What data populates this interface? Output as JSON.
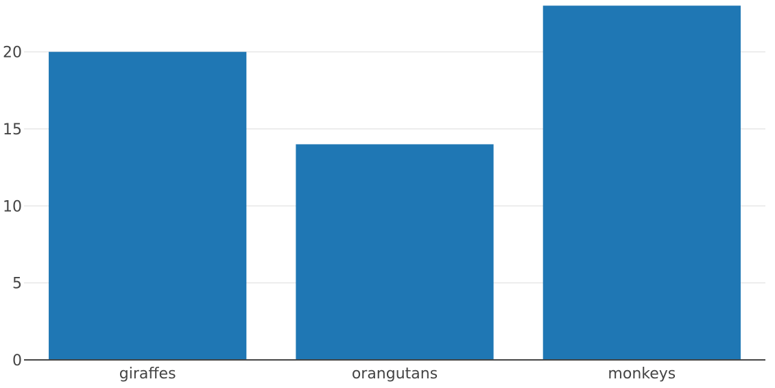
{
  "chart_data": {
    "type": "bar",
    "title": "",
    "xlabel": "",
    "ylabel": "",
    "categories": [
      "giraffes",
      "orangutans",
      "monkeys"
    ],
    "values": [
      20,
      14,
      23
    ],
    "ylim": [
      0,
      23.1
    ],
    "yticks": [
      0,
      5,
      10,
      15,
      20
    ],
    "grid": true,
    "legend": "none",
    "bar_color": "#1f77b4"
  }
}
